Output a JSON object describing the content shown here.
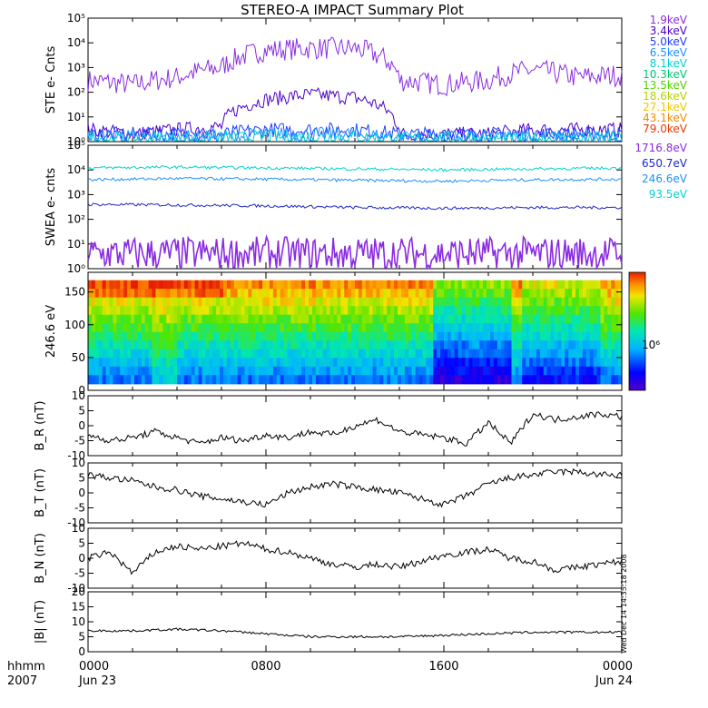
{
  "title": "STEREO-A IMPACT Summary Plot",
  "footer": {
    "hhmm": "hhmm",
    "year": "2007",
    "ticks": [
      "0000",
      "0800",
      "1600",
      "0000"
    ],
    "dates": [
      "Jun 23",
      "",
      "",
      "Jun 24"
    ]
  },
  "side_note": "Wed Dec 14 14:35:18 2008",
  "colorbar_label": "10⁶",
  "ste_legend": [
    {
      "label": "1.9keV",
      "color": "#8a2be2"
    },
    {
      "label": "3.4keV",
      "color": "#4b00c8"
    },
    {
      "label": "5.0keV",
      "color": "#1e3cff"
    },
    {
      "label": "6.5keV",
      "color": "#1e90ff"
    },
    {
      "label": "8.1keV",
      "color": "#00d2d2"
    },
    {
      "label": "10.3keV",
      "color": "#00c878"
    },
    {
      "label": "13.5keV",
      "color": "#50d200"
    },
    {
      "label": "18.6keV",
      "color": "#b4d200"
    },
    {
      "label": "27.1keV",
      "color": "#f0c800"
    },
    {
      "label": "43.1keV",
      "color": "#f08c00"
    },
    {
      "label": "79.0keV",
      "color": "#e63c00"
    }
  ],
  "swea_legend": [
    {
      "label": "1716.8eV",
      "color": "#8a2be2"
    },
    {
      "label": "650.7eV",
      "color": "#1e28c8"
    },
    {
      "label": "246.6eV",
      "color": "#1e90ff"
    },
    {
      "label": "93.5eV",
      "color": "#00d2d2"
    }
  ],
  "chart_data": [
    {
      "type": "line",
      "ylabel": "STE e- Cnts",
      "yscale": "log",
      "ylim": [
        1,
        100000
      ],
      "yticks": [
        "10⁰",
        "10¹",
        "10²",
        "10³",
        "10⁴",
        "10⁵"
      ],
      "x_hours": [
        0,
        2,
        4,
        6,
        8,
        10,
        12,
        14,
        16,
        18,
        20,
        22,
        24
      ],
      "series": [
        {
          "name": "1.9keV",
          "values": [
            300,
            200,
            400,
            1000,
            5000,
            6000,
            6000,
            300,
            200,
            300,
            800,
            400,
            500
          ]
        },
        {
          "name": "3.4keV",
          "values": [
            3,
            2,
            3,
            4,
            50,
            80,
            60,
            2,
            2,
            2,
            3,
            3,
            3
          ]
        },
        {
          "name": "5.0keV",
          "values": [
            2,
            2,
            2,
            2,
            3,
            3,
            3,
            2,
            2,
            2,
            2,
            2,
            2
          ]
        },
        {
          "name": "6.5keV",
          "values": [
            1.5,
            1.5,
            1.5,
            1.5,
            2,
            2,
            2,
            1.5,
            1.5,
            1.5,
            1.5,
            1.5,
            1.5
          ]
        },
        {
          "name": "8.1keV",
          "values": [
            1.3,
            1.3,
            1.3,
            1.3,
            1.5,
            1.5,
            1.5,
            1.3,
            1.3,
            1.3,
            1.3,
            1.3,
            1.3
          ]
        }
      ]
    },
    {
      "type": "line",
      "ylabel": "SWEA e- cnts",
      "yscale": "log",
      "ylim": [
        1,
        100000
      ],
      "yticks": [
        "10⁰",
        "10¹",
        "10²",
        "10³",
        "10⁴",
        "10⁵"
      ],
      "x_hours": [
        0,
        4,
        8,
        12,
        16,
        20,
        24
      ],
      "series": [
        {
          "name": "1716.8eV",
          "values": [
            4,
            4,
            4,
            4,
            4,
            4,
            4
          ]
        },
        {
          "name": "650.7eV",
          "values": [
            400,
            380,
            350,
            300,
            280,
            300,
            300
          ]
        },
        {
          "name": "246.6eV",
          "values": [
            4000,
            4500,
            4200,
            3800,
            3500,
            4000,
            4200
          ]
        },
        {
          "name": "93.5eV",
          "values": [
            12000,
            13000,
            12000,
            11000,
            10000,
            11000,
            12000
          ]
        }
      ]
    },
    {
      "type": "heatmap",
      "ylabel": "246.6 eV",
      "ylim": [
        0,
        180
      ],
      "yticks": [
        0,
        50,
        100,
        150
      ],
      "xlim_hours": [
        0,
        24
      ]
    },
    {
      "type": "line",
      "ylabel": "B_R (nT)",
      "ylim": [
        -10,
        10
      ],
      "yticks": [
        -10,
        -5,
        0,
        5,
        10
      ],
      "x_hours": [
        0,
        1,
        2,
        3,
        4,
        5,
        6,
        7,
        8,
        9,
        10,
        11,
        12,
        13,
        14,
        15,
        16,
        17,
        18,
        19,
        20,
        21,
        22,
        23,
        24
      ],
      "values": [
        -3,
        -5,
        -4,
        -2,
        -4,
        -6,
        -4,
        -5,
        -3,
        -4,
        -2,
        -3,
        0,
        2,
        -2,
        -3,
        -4,
        -6,
        1,
        -6,
        4,
        2,
        3,
        4,
        3
      ]
    },
    {
      "type": "line",
      "ylabel": "B_T (nT)",
      "ylim": [
        -10,
        10
      ],
      "yticks": [
        -10,
        -5,
        0,
        5,
        10
      ],
      "x_hours": [
        0,
        1,
        2,
        3,
        4,
        5,
        6,
        7,
        8,
        9,
        10,
        11,
        12,
        13,
        14,
        15,
        16,
        17,
        18,
        19,
        20,
        21,
        22,
        23,
        24
      ],
      "values": [
        6,
        5,
        4,
        2,
        1,
        -1,
        -2,
        -3,
        -4,
        0,
        2,
        3,
        2,
        1,
        0,
        -2,
        -4,
        -1,
        3,
        5,
        6,
        7,
        7,
        6,
        6
      ]
    },
    {
      "type": "line",
      "ylabel": "B_N (nT)",
      "ylim": [
        -10,
        10
      ],
      "yticks": [
        -10,
        -5,
        0,
        5,
        10
      ],
      "x_hours": [
        0,
        1,
        2,
        3,
        4,
        5,
        6,
        7,
        8,
        9,
        10,
        11,
        12,
        13,
        14,
        15,
        16,
        17,
        18,
        19,
        20,
        21,
        22,
        23,
        24
      ],
      "values": [
        0,
        2,
        -5,
        2,
        4,
        3,
        4,
        5,
        3,
        2,
        0,
        -2,
        -3,
        -2,
        -3,
        -1,
        1,
        2,
        3,
        0,
        -1,
        -4,
        -3,
        -2,
        -1
      ]
    },
    {
      "type": "line",
      "ylabel": "|B| (nT)",
      "ylim": [
        0,
        20
      ],
      "yticks": [
        0,
        5,
        10,
        15,
        20
      ],
      "x_hours": [
        0,
        2,
        4,
        6,
        8,
        10,
        12,
        14,
        16,
        18,
        20,
        22,
        24
      ],
      "values": [
        7,
        7,
        7.5,
        7,
        6,
        5,
        5,
        5,
        5.5,
        6,
        6.5,
        6.5,
        6.5
      ]
    }
  ]
}
